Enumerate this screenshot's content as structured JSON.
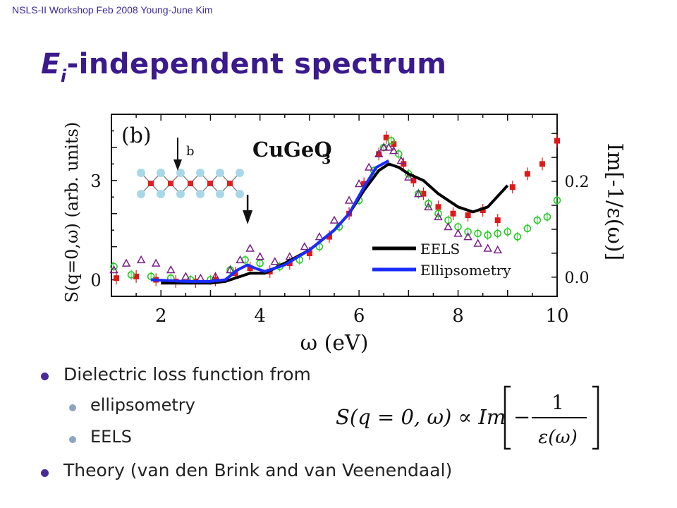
{
  "slide": {
    "header": "NSLS-II Workshop Feb 2008 Young-June Kim",
    "title_main": "E",
    "title_sub": "i",
    "title_rest": "-independent spectrum",
    "bullets": [
      {
        "text": "Dielectric loss function from",
        "level": 1
      },
      {
        "text": "ellipsometry",
        "level": 2
      },
      {
        "text": "EELS",
        "level": 2
      },
      {
        "text": "Theory (van den Brink and van Veenendaal)",
        "level": 1
      }
    ],
    "formula": {
      "lhs": "S(q = 0, ω) ∝ Im",
      "numerator": "1",
      "denominator": "ε(ω)",
      "minus": "−"
    }
  },
  "chart_data": {
    "type": "scatter",
    "panel_label": "(b)",
    "compound": "CuGeO",
    "compound_sub": "3",
    "inset_label": "b",
    "xlabel": "ω (eV)",
    "ylabel_left": "S(q=0,ω) (arb. units)",
    "ylabel_right": "Im[-1/ε(ω)]",
    "xlim": [
      1,
      10
    ],
    "ylim_left": [
      -0.5,
      5
    ],
    "ylim_right": [
      -0.04,
      0.34
    ],
    "xticks": [
      2,
      4,
      6,
      8,
      10
    ],
    "yticks_left": [
      0,
      3
    ],
    "yticks_right": [
      0.0,
      0.2
    ],
    "legend": [
      "EELS",
      "Ellipsometry"
    ],
    "colors": {
      "eels": "#000000",
      "ellipsometry": "#1a2cff",
      "squares": "#e01818",
      "circles": "#22cc22",
      "triangles": "#7a2088"
    },
    "series": [
      {
        "name": "EELS",
        "marker": "line",
        "x": [
          2.0,
          2.5,
          3.0,
          3.3,
          3.6,
          3.8,
          4.1,
          4.5,
          5.0,
          5.5,
          5.8,
          6.1,
          6.4,
          6.6,
          6.8,
          7.0,
          7.3,
          7.6,
          8.0,
          8.3,
          8.6,
          9.0
        ],
        "y": [
          -0.1,
          -0.1,
          -0.1,
          -0.05,
          0.1,
          0.2,
          0.2,
          0.5,
          0.9,
          1.5,
          2.0,
          2.7,
          3.3,
          3.5,
          3.4,
          3.2,
          3.0,
          2.6,
          2.2,
          2.05,
          2.2,
          2.85
        ]
      },
      {
        "name": "Ellipsometry",
        "marker": "line",
        "x": [
          1.8,
          2.5,
          3.0,
          3.3,
          3.55,
          3.75,
          3.9,
          4.1,
          4.5,
          5.0,
          5.5,
          5.8,
          6.1,
          6.35,
          6.6
        ],
        "y": [
          0.0,
          -0.05,
          -0.05,
          0.0,
          0.3,
          0.45,
          0.35,
          0.25,
          0.45,
          0.9,
          1.5,
          2.0,
          2.8,
          3.4,
          3.6
        ]
      },
      {
        "marker": "square",
        "x": [
          1.1,
          1.5,
          1.9,
          2.3,
          2.7,
          3.1,
          3.5,
          3.8,
          4.2,
          4.6,
          5.0,
          5.4,
          5.8,
          6.1,
          6.4,
          6.55,
          6.7,
          6.9,
          7.1,
          7.3,
          7.6,
          7.9,
          8.2,
          8.5,
          8.8,
          9.1,
          9.4,
          9.7,
          10.0
        ],
        "y": [
          0.05,
          0.1,
          0.0,
          -0.05,
          -0.05,
          0.0,
          0.2,
          0.35,
          0.25,
          0.5,
          0.8,
          1.3,
          2.0,
          2.9,
          3.8,
          4.3,
          4.1,
          3.5,
          3.0,
          2.6,
          2.2,
          2.0,
          1.95,
          2.1,
          1.8,
          2.8,
          3.2,
          3.5,
          4.2
        ]
      },
      {
        "marker": "circle",
        "x": [
          1.05,
          1.4,
          1.8,
          2.2,
          2.6,
          3.0,
          3.4,
          3.7,
          4.0,
          4.4,
          4.8,
          5.2,
          5.6,
          6.0,
          6.3,
          6.5,
          6.65,
          6.8,
          7.0,
          7.2,
          7.4,
          7.6,
          7.8,
          8.0,
          8.2,
          8.4,
          8.6,
          8.8,
          9.0,
          9.2,
          9.4,
          9.6,
          9.8,
          10.0
        ],
        "y": [
          0.4,
          0.15,
          0.1,
          0.05,
          0.0,
          0.0,
          0.3,
          0.6,
          0.5,
          0.4,
          0.6,
          1.0,
          1.6,
          2.4,
          3.3,
          4.0,
          4.2,
          3.8,
          3.2,
          2.6,
          2.3,
          2.0,
          1.8,
          1.6,
          1.45,
          1.4,
          1.35,
          1.4,
          1.45,
          1.3,
          1.55,
          1.8,
          1.9,
          2.4
        ]
      },
      {
        "marker": "triangle",
        "x": [
          1.05,
          1.3,
          1.6,
          1.9,
          2.2,
          2.5,
          2.8,
          3.1,
          3.4,
          3.6,
          3.8,
          4.0,
          4.3,
          4.6,
          4.9,
          5.2,
          5.5,
          5.8,
          6.0,
          6.2,
          6.4,
          6.5,
          6.6,
          6.7,
          6.85,
          7.0,
          7.2,
          7.4,
          7.6,
          7.8,
          8.0,
          8.2,
          8.4,
          8.6,
          8.8
        ],
        "y": [
          0.3,
          0.5,
          0.6,
          0.5,
          0.3,
          0.1,
          0.05,
          0.1,
          0.3,
          0.6,
          0.95,
          0.7,
          0.55,
          0.7,
          1.0,
          1.3,
          1.8,
          2.4,
          2.9,
          3.4,
          3.8,
          4.0,
          4.0,
          3.9,
          3.6,
          3.1,
          2.6,
          2.2,
          1.9,
          1.6,
          1.4,
          1.3,
          1.1,
          0.95,
          0.9
        ]
      }
    ]
  }
}
